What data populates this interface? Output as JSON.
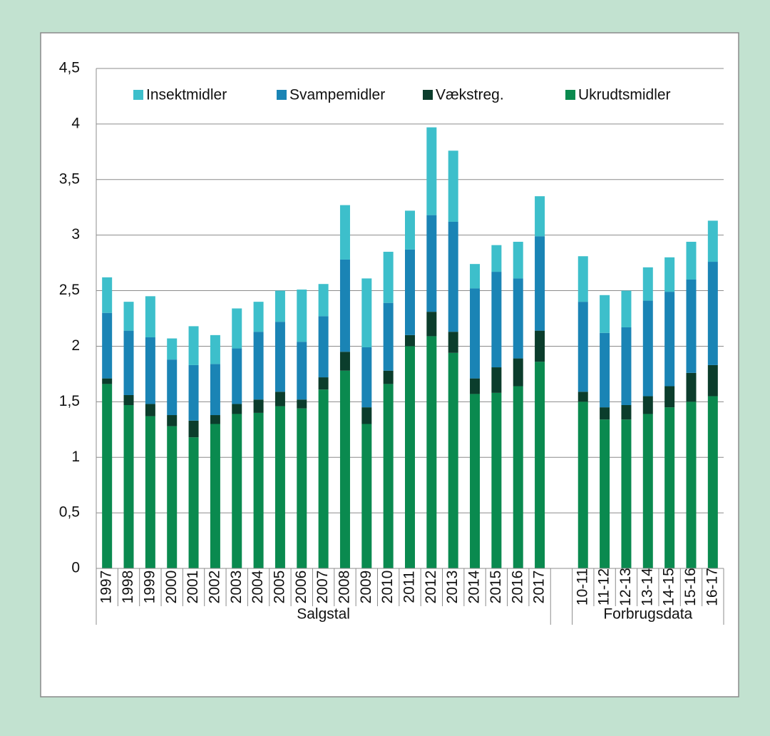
{
  "chart_data": {
    "type": "stacked_bar",
    "categories": [
      "1997",
      "1998",
      "1999",
      "2000",
      "2001",
      "2002",
      "2003",
      "2004",
      "2005",
      "2006",
      "2007",
      "2008",
      "2009",
      "2010",
      "2011",
      "2012",
      "2013",
      "2014",
      "2015",
      "2016",
      "2017",
      null,
      "10-11",
      "11-12",
      "12-13",
      "13-14",
      "14-15",
      "15-16",
      "16-17"
    ],
    "group_labels": [
      "Salgstal",
      "Forbrugsdata"
    ],
    "series": [
      {
        "name": "Insektmidler",
        "color": "#3dbfcb",
        "values": [
          0.32,
          0.26,
          0.37,
          0.19,
          0.35,
          0.26,
          0.36,
          0.27,
          0.28,
          0.47,
          0.29,
          0.49,
          0.62,
          0.46,
          0.35,
          0.79,
          0.64,
          0.22,
          0.24,
          0.33,
          0.36,
          null,
          0.41,
          0.34,
          0.33,
          0.3,
          0.31,
          0.34,
          0.37
        ]
      },
      {
        "name": "Svampemidler",
        "color": "#1a84b5",
        "values": [
          0.59,
          0.58,
          0.6,
          0.5,
          0.5,
          0.46,
          0.5,
          0.61,
          0.63,
          0.52,
          0.55,
          0.83,
          0.54,
          0.61,
          0.77,
          0.87,
          0.99,
          0.81,
          0.86,
          0.72,
          0.85,
          null,
          0.81,
          0.67,
          0.7,
          0.86,
          0.85,
          0.84,
          0.93
        ]
      },
      {
        "name": "Vækstreg.",
        "color": "#0b3d2c",
        "values": [
          0.05,
          0.09,
          0.11,
          0.1,
          0.15,
          0.08,
          0.09,
          0.12,
          0.13,
          0.08,
          0.11,
          0.17,
          0.15,
          0.12,
          0.1,
          0.22,
          0.19,
          0.14,
          0.23,
          0.25,
          0.28,
          null,
          0.09,
          0.11,
          0.13,
          0.16,
          0.19,
          0.26,
          0.28
        ]
      },
      {
        "name": "Ukrudtsmidler",
        "color": "#0a8a4f",
        "values": [
          1.66,
          1.47,
          1.37,
          1.28,
          1.18,
          1.3,
          1.39,
          1.4,
          1.46,
          1.44,
          1.61,
          1.78,
          1.3,
          1.66,
          2.0,
          2.09,
          1.94,
          1.57,
          1.58,
          1.64,
          1.86,
          null,
          1.5,
          1.34,
          1.34,
          1.39,
          1.45,
          1.5,
          1.55
        ]
      }
    ],
    "ylim": [
      0,
      4.5
    ],
    "yticks": [
      0,
      {
        "value": 0.5,
        "label": "0,5"
      },
      1,
      {
        "value": 1.5,
        "label": "1,5"
      },
      2,
      {
        "value": 2.5,
        "label": "2,5"
      },
      3,
      {
        "value": 3.5,
        "label": "3,5"
      },
      4,
      {
        "value": 4.5,
        "label": "4,5"
      }
    ],
    "grid": true,
    "legend": "top"
  }
}
